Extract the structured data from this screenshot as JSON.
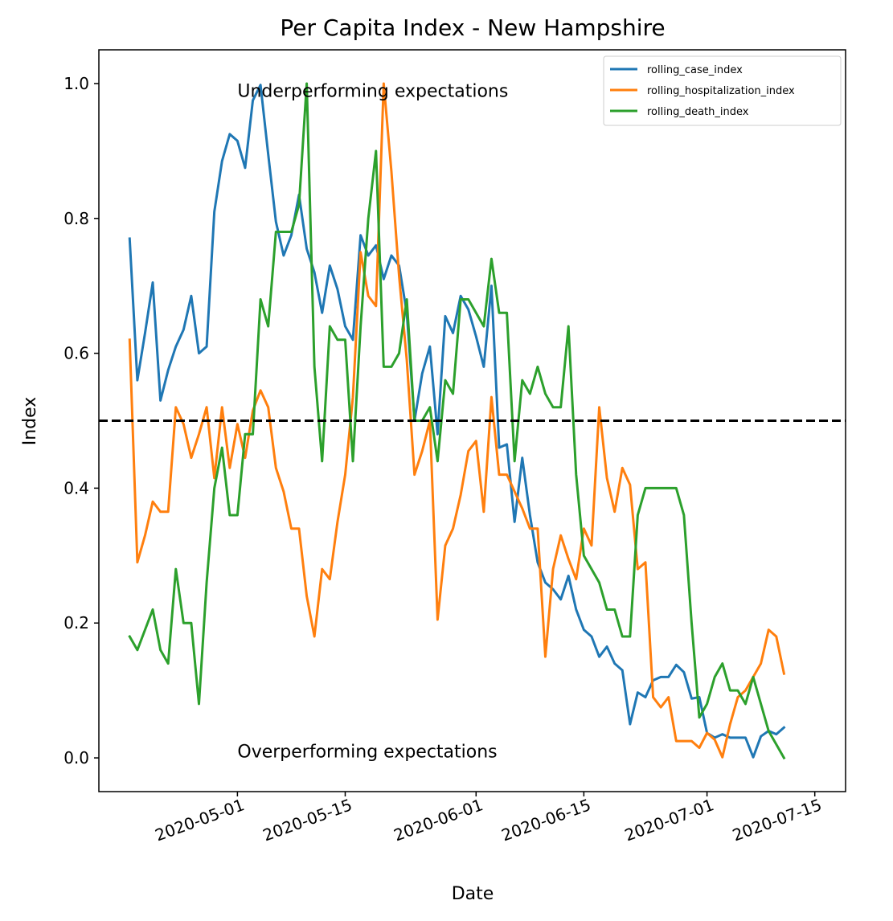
{
  "chart_data": {
    "type": "line",
    "title": "Per Capita Index - New Hampshire",
    "xlabel": "Date",
    "ylabel": "Index",
    "x_start": "2020-04-17",
    "x_ticks": [
      "2020-05-01",
      "2020-05-15",
      "2020-06-01",
      "2020-06-15",
      "2020-07-01",
      "2020-07-15"
    ],
    "y_ticks": [
      "0.0",
      "0.2",
      "0.4",
      "0.6",
      "0.8",
      "1.0"
    ],
    "xlim": [
      "2020-04-13",
      "2020-07-19"
    ],
    "ylim": [
      -0.05,
      1.05
    ],
    "grid": false,
    "legend_position": "upper right",
    "reference_line": {
      "y": 0.5,
      "style": "dashed",
      "color": "#000000"
    },
    "annotations": [
      {
        "text": "Underperforming expectations",
        "x": "2020-05-01",
        "y": 0.99
      },
      {
        "text": "Overperforming expectations",
        "x": "2020-05-01",
        "y": 0.01
      }
    ],
    "series": [
      {
        "name": "rolling_case_index",
        "color": "#1f77b4",
        "values": [
          0.77,
          0.56,
          0.63,
          0.705,
          0.53,
          0.575,
          0.61,
          0.635,
          0.685,
          0.6,
          0.61,
          0.81,
          0.885,
          0.925,
          0.915,
          0.875,
          0.975,
          0.998,
          0.895,
          0.795,
          0.745,
          0.775,
          0.835,
          0.755,
          0.72,
          0.66,
          0.73,
          0.695,
          0.64,
          0.62,
          0.775,
          0.745,
          0.76,
          0.71,
          0.745,
          0.73,
          0.66,
          0.5,
          0.57,
          0.61,
          0.48,
          0.655,
          0.63,
          0.685,
          0.665,
          0.625,
          0.58,
          0.7,
          0.46,
          0.465,
          0.35,
          0.445,
          0.36,
          0.29,
          0.26,
          0.25,
          0.235,
          0.27,
          0.22,
          0.19,
          0.18,
          0.15,
          0.165,
          0.14,
          0.13,
          0.05,
          0.097,
          0.09,
          0.115,
          0.12,
          0.12,
          0.138,
          0.127,
          0.088,
          0.09,
          0.037,
          0.03,
          0.035,
          0.03,
          0.03,
          0.03,
          0.001,
          0.032,
          0.04,
          0.035,
          0.045
        ]
      },
      {
        "name": "rolling_hospitalization_index",
        "color": "#ff7f0e",
        "values": [
          0.62,
          0.29,
          0.33,
          0.38,
          0.365,
          0.365,
          0.52,
          0.495,
          0.445,
          0.48,
          0.52,
          0.415,
          0.52,
          0.43,
          0.495,
          0.445,
          0.515,
          0.545,
          0.52,
          0.43,
          0.395,
          0.34,
          0.34,
          0.24,
          0.18,
          0.28,
          0.265,
          0.35,
          0.42,
          0.535,
          0.75,
          0.685,
          0.67,
          1.0,
          0.87,
          0.715,
          0.59,
          0.42,
          0.455,
          0.5,
          0.205,
          0.315,
          0.34,
          0.39,
          0.455,
          0.47,
          0.365,
          0.535,
          0.42,
          0.42,
          0.395,
          0.37,
          0.34,
          0.34,
          0.15,
          0.28,
          0.33,
          0.295,
          0.265,
          0.34,
          0.315,
          0.52,
          0.415,
          0.365,
          0.43,
          0.405,
          0.28,
          0.29,
          0.09,
          0.075,
          0.09,
          0.025,
          0.025,
          0.025,
          0.015,
          0.037,
          0.027,
          0.001,
          0.05,
          0.09,
          0.1,
          0.12,
          0.14,
          0.19,
          0.18,
          0.125
        ]
      },
      {
        "name": "rolling_death_index",
        "color": "#2ca02c",
        "values": [
          0.18,
          0.16,
          0.19,
          0.22,
          0.16,
          0.14,
          0.28,
          0.2,
          0.2,
          0.08,
          0.26,
          0.4,
          0.46,
          0.36,
          0.36,
          0.48,
          0.48,
          0.68,
          0.64,
          0.78,
          0.78,
          0.78,
          0.82,
          1.0,
          0.58,
          0.44,
          0.64,
          0.62,
          0.62,
          0.44,
          0.64,
          0.8,
          0.9,
          0.58,
          0.58,
          0.6,
          0.68,
          0.5,
          0.5,
          0.52,
          0.44,
          0.56,
          0.54,
          0.68,
          0.68,
          0.66,
          0.64,
          0.74,
          0.66,
          0.66,
          0.44,
          0.56,
          0.54,
          0.58,
          0.54,
          0.52,
          0.52,
          0.64,
          0.42,
          0.3,
          0.28,
          0.26,
          0.22,
          0.22,
          0.18,
          0.18,
          0.36,
          0.4,
          0.4,
          0.4,
          0.4,
          0.4,
          0.36,
          0.2,
          0.06,
          0.08,
          0.12,
          0.14,
          0.1,
          0.1,
          0.08,
          0.12,
          0.08,
          0.04,
          0.02,
          0.0
        ]
      }
    ]
  }
}
